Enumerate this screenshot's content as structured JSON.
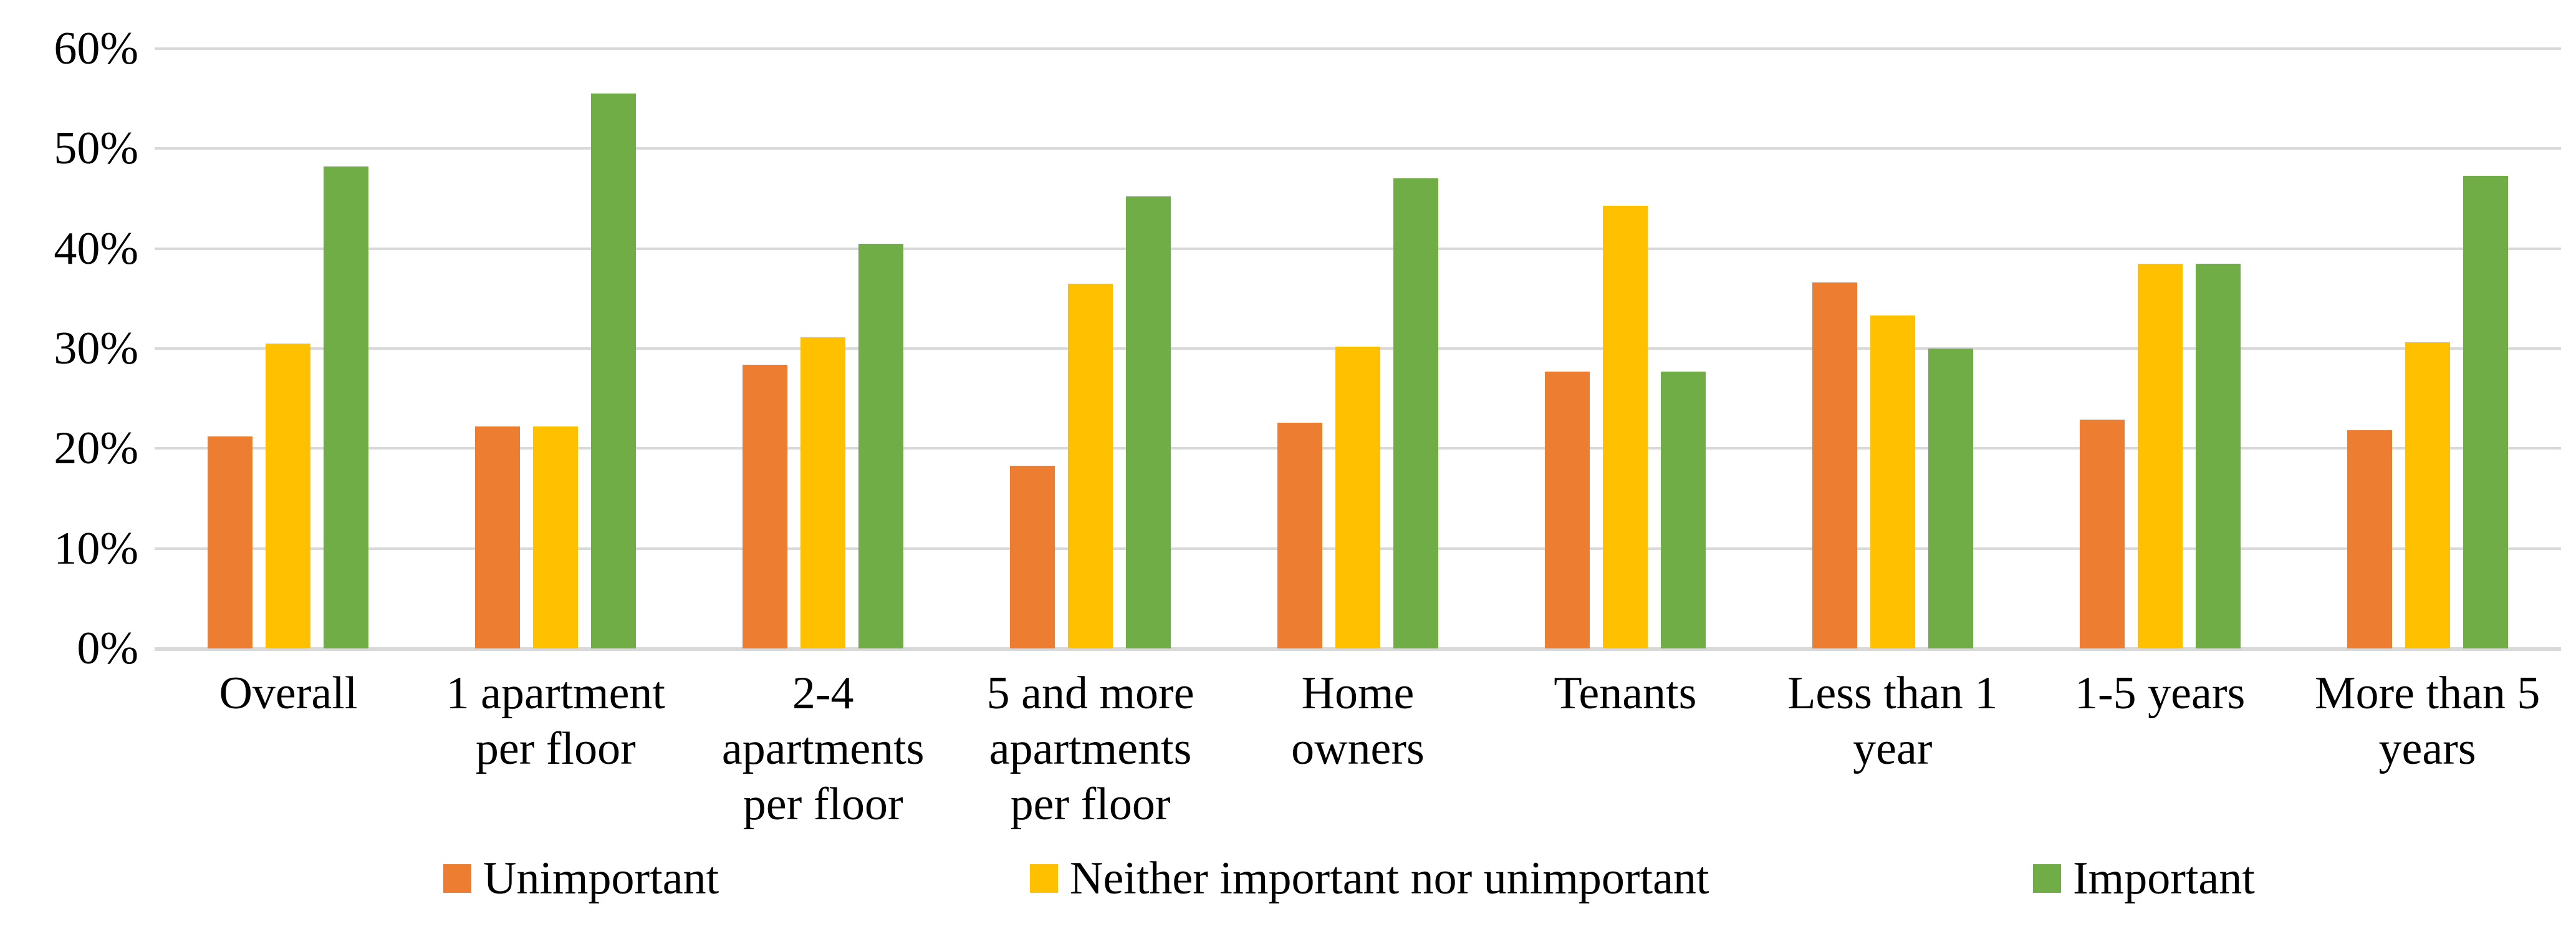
{
  "chart_data": {
    "type": "bar",
    "categories": [
      "Overall",
      "1 apartment\nper floor",
      "2-4\napartments\nper floor",
      "5 and more\napartments\nper floor",
      "Home\nowners",
      "Tenants",
      "Less than 1\nyear",
      "1-5 years",
      "More than 5\nyears"
    ],
    "series": [
      {
        "name": "Unimportant",
        "color": "#ED7D31",
        "values": [
          21.2,
          22.2,
          28.4,
          18.3,
          22.6,
          27.7,
          36.6,
          22.9,
          21.8
        ]
      },
      {
        "name": "Neither important nor unimportant",
        "color": "#FFC000",
        "values": [
          30.5,
          22.2,
          31.1,
          36.5,
          30.2,
          44.3,
          33.3,
          38.5,
          30.6
        ]
      },
      {
        "name": "Important",
        "color": "#70AD47",
        "values": [
          48.2,
          55.5,
          40.5,
          45.2,
          47.0,
          27.7,
          30.0,
          38.5,
          47.3
        ]
      }
    ],
    "ylim": [
      0,
      60
    ],
    "yticks": [
      0,
      10,
      20,
      30,
      40,
      50,
      60
    ],
    "ytick_suffix": "%",
    "grid": true,
    "legend_position": "bottom"
  },
  "style": {
    "gridline_color": "#D9D9D9",
    "axis_color": "#D9D9D9",
    "text_color": "#000000",
    "background": "#FFFFFF"
  }
}
